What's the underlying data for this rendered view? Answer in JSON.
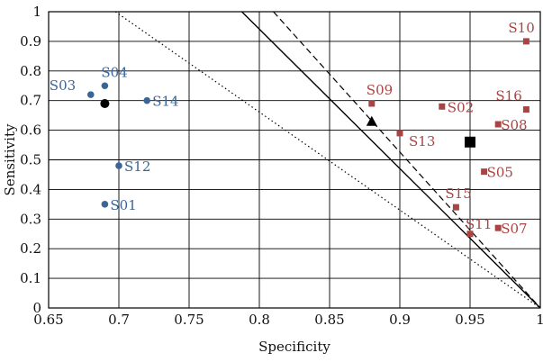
{
  "chart_data": {
    "type": "scatter",
    "xlabel": "Specificity",
    "ylabel": "Sensitivity",
    "xlim": [
      0.65,
      1
    ],
    "ylim": [
      0,
      1
    ],
    "x_ticks": [
      "0.65",
      "0.7",
      "0.75",
      "0.8",
      "0.85",
      "0.9",
      "0.95",
      "1"
    ],
    "y_ticks": [
      "0",
      "0.1",
      "0.2",
      "0.3",
      "0.4",
      "0.5",
      "0.6",
      "0.7",
      "0.8",
      "0.9",
      "1"
    ],
    "grid": true,
    "colors": {
      "blue": "#3b6597",
      "red": "#a84444",
      "black": "#000000"
    },
    "series": [
      {
        "marker": "circle",
        "color": "#3b6597",
        "points": [
          {
            "label": "S01",
            "x": 0.69,
            "y": 0.35
          },
          {
            "label": "S03",
            "x": 0.68,
            "y": 0.72
          },
          {
            "label": "S04",
            "x": 0.69,
            "y": 0.75
          },
          {
            "label": "S12",
            "x": 0.7,
            "y": 0.48
          },
          {
            "label": "S14",
            "x": 0.72,
            "y": 0.7
          }
        ]
      },
      {
        "marker": "square",
        "color": "#a84444",
        "points": [
          {
            "label": "S02",
            "x": 0.93,
            "y": 0.68
          },
          {
            "label": "S05",
            "x": 0.96,
            "y": 0.46
          },
          {
            "label": "S07",
            "x": 0.97,
            "y": 0.27
          },
          {
            "label": "S08",
            "x": 0.97,
            "y": 0.62
          },
          {
            "label": "S09",
            "x": 0.88,
            "y": 0.69
          },
          {
            "label": "S10",
            "x": 0.99,
            "y": 0.9
          },
          {
            "label": "S11",
            "x": 0.95,
            "y": 0.25
          },
          {
            "label": "S13",
            "x": 0.9,
            "y": 0.59
          },
          {
            "label": "S15",
            "x": 0.94,
            "y": 0.34
          },
          {
            "label": "S16",
            "x": 0.99,
            "y": 0.67
          }
        ]
      }
    ],
    "summary_points": [
      {
        "marker": "circle",
        "x": 0.69,
        "y": 0.69
      },
      {
        "marker": "triangle",
        "x": 0.88,
        "y": 0.63
      },
      {
        "marker": "square",
        "x": 0.95,
        "y": 0.56
      }
    ],
    "reference_lines": [
      {
        "style": "solid",
        "from": [
          0.7875,
          1
        ],
        "to": [
          1,
          0
        ]
      },
      {
        "style": "dashed",
        "from": [
          0.81,
          1
        ],
        "to": [
          1,
          0
        ]
      },
      {
        "style": "dotted",
        "from": [
          0.6975,
          1
        ],
        "to": [
          1,
          0
        ]
      }
    ]
  }
}
